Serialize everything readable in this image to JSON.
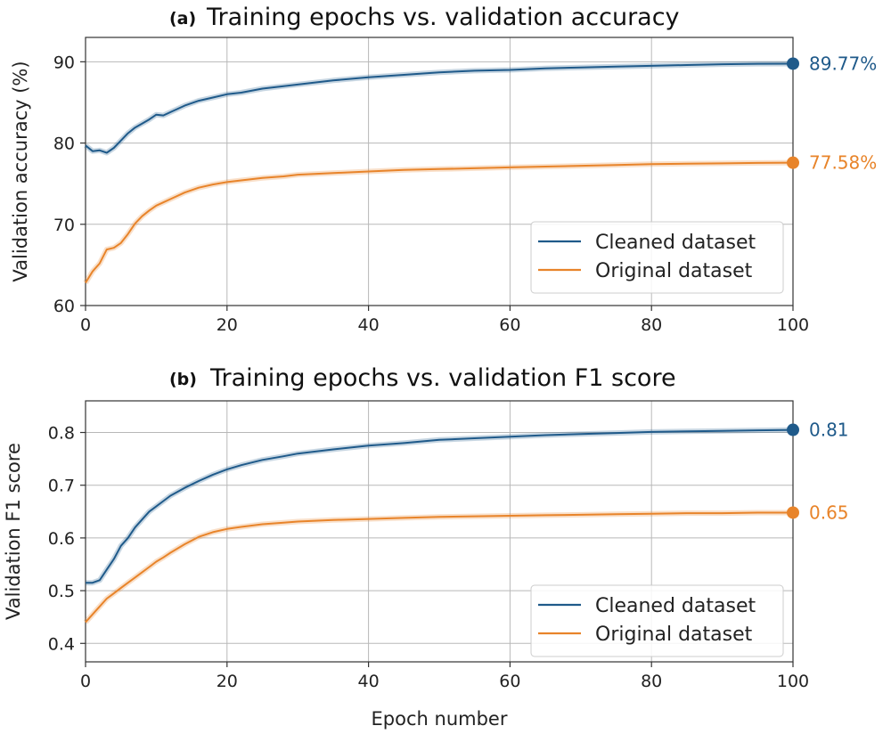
{
  "colors": {
    "cleaned": "#1f5a8a",
    "original": "#e8842a"
  },
  "chart_data": [
    {
      "type": "line",
      "panel": "(a)",
      "title": "Training epochs vs. validation accuracy",
      "xlabel": "",
      "ylabel": "Validation accuracy (%)",
      "xlim": [
        0,
        100
      ],
      "ylim": [
        60,
        93
      ],
      "xticks": [
        0,
        20,
        40,
        60,
        80,
        100
      ],
      "yticks": [
        60,
        70,
        80,
        90
      ],
      "grid": true,
      "legend": "bottom-right",
      "x": [
        0,
        1,
        2,
        3,
        4,
        5,
        6,
        7,
        8,
        9,
        10,
        11,
        12,
        14,
        16,
        18,
        20,
        22,
        25,
        28,
        30,
        35,
        40,
        45,
        50,
        55,
        60,
        65,
        70,
        75,
        80,
        85,
        90,
        95,
        100
      ],
      "series": [
        {
          "name": "Cleaned dataset",
          "color_key": "cleaned",
          "end_label": "89.77%",
          "values": [
            79.7,
            79.0,
            79.1,
            78.8,
            79.4,
            80.3,
            81.2,
            81.9,
            82.4,
            82.9,
            83.5,
            83.4,
            83.8,
            84.6,
            85.2,
            85.6,
            86.0,
            86.2,
            86.7,
            87.0,
            87.2,
            87.7,
            88.1,
            88.4,
            88.7,
            88.9,
            89.0,
            89.2,
            89.3,
            89.4,
            89.5,
            89.6,
            89.7,
            89.75,
            89.77
          ]
        },
        {
          "name": "Original dataset",
          "color_key": "original",
          "end_label": "77.58%",
          "values": [
            62.8,
            64.2,
            65.2,
            66.9,
            67.1,
            67.7,
            68.8,
            70.1,
            71.0,
            71.7,
            72.3,
            72.7,
            73.1,
            73.9,
            74.5,
            74.9,
            75.2,
            75.4,
            75.7,
            75.9,
            76.1,
            76.3,
            76.5,
            76.7,
            76.8,
            76.9,
            77.0,
            77.1,
            77.2,
            77.3,
            77.4,
            77.45,
            77.5,
            77.55,
            77.58
          ]
        }
      ]
    },
    {
      "type": "line",
      "panel": "(b)",
      "title": "Training epochs vs. validation F1 score",
      "xlabel": "Epoch number",
      "ylabel": "Validation F1 score",
      "xlim": [
        0,
        100
      ],
      "ylim": [
        0.365,
        0.86
      ],
      "xticks": [
        0,
        20,
        40,
        60,
        80,
        100
      ],
      "yticks": [
        0.4,
        0.5,
        0.6,
        0.7,
        0.8
      ],
      "grid": true,
      "legend": "bottom-right",
      "x": [
        0,
        1,
        2,
        3,
        4,
        5,
        6,
        7,
        8,
        9,
        10,
        11,
        12,
        14,
        16,
        18,
        20,
        22,
        25,
        28,
        30,
        35,
        40,
        45,
        50,
        55,
        60,
        65,
        70,
        75,
        80,
        85,
        90,
        95,
        100
      ],
      "series": [
        {
          "name": "Cleaned dataset",
          "color_key": "cleaned",
          "end_label": "0.81",
          "values": [
            0.515,
            0.515,
            0.52,
            0.54,
            0.56,
            0.585,
            0.6,
            0.62,
            0.635,
            0.65,
            0.66,
            0.67,
            0.68,
            0.695,
            0.708,
            0.72,
            0.73,
            0.738,
            0.748,
            0.755,
            0.76,
            0.768,
            0.775,
            0.78,
            0.786,
            0.789,
            0.792,
            0.795,
            0.797,
            0.799,
            0.801,
            0.802,
            0.803,
            0.804,
            0.805
          ]
        },
        {
          "name": "Original dataset",
          "color_key": "original",
          "end_label": "0.65",
          "values": [
            0.44,
            0.455,
            0.47,
            0.485,
            0.495,
            0.505,
            0.515,
            0.525,
            0.535,
            0.545,
            0.555,
            0.563,
            0.572,
            0.588,
            0.602,
            0.611,
            0.617,
            0.621,
            0.626,
            0.629,
            0.631,
            0.634,
            0.636,
            0.638,
            0.64,
            0.641,
            0.642,
            0.643,
            0.644,
            0.645,
            0.646,
            0.647,
            0.647,
            0.648,
            0.648
          ]
        }
      ]
    }
  ]
}
